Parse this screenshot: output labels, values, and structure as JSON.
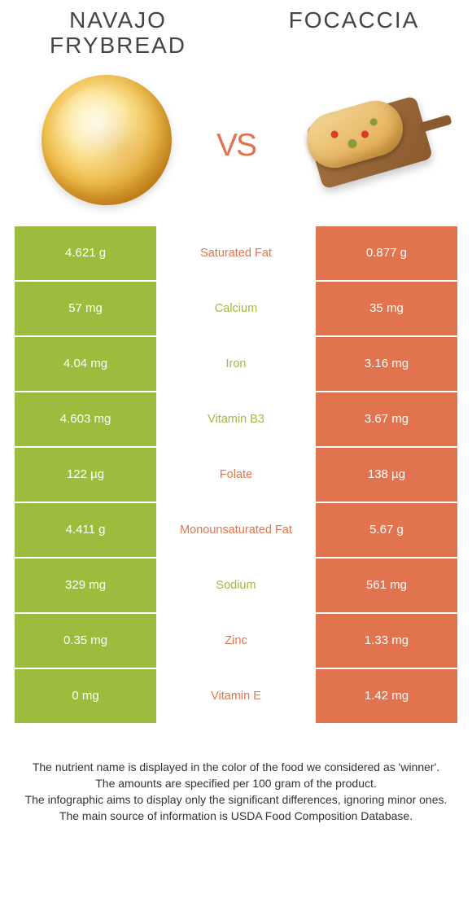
{
  "colors": {
    "left": "#9dbb3c",
    "right": "#e1744f",
    "vs": "#e1744f",
    "nutrient_winner_left": "#9dbb3c",
    "nutrient_winner_right": "#e1744f"
  },
  "header": {
    "left_title": "Navajo Frybread",
    "right_title": "Focaccia",
    "vs_label": "vs"
  },
  "rows": [
    {
      "nutrient": "Saturated Fat",
      "left": "4.621 g",
      "right": "0.877 g",
      "winner": "right"
    },
    {
      "nutrient": "Calcium",
      "left": "57 mg",
      "right": "35 mg",
      "winner": "left"
    },
    {
      "nutrient": "Iron",
      "left": "4.04 mg",
      "right": "3.16 mg",
      "winner": "left"
    },
    {
      "nutrient": "Vitamin B3",
      "left": "4.603 mg",
      "right": "3.67 mg",
      "winner": "left"
    },
    {
      "nutrient": "Folate",
      "left": "122 µg",
      "right": "138 µg",
      "winner": "right"
    },
    {
      "nutrient": "Monounsaturated Fat",
      "left": "4.411 g",
      "right": "5.67 g",
      "winner": "right"
    },
    {
      "nutrient": "Sodium",
      "left": "329 mg",
      "right": "561 mg",
      "winner": "left"
    },
    {
      "nutrient": "Zinc",
      "left": "0.35 mg",
      "right": "1.33 mg",
      "winner": "right"
    },
    {
      "nutrient": "Vitamin E",
      "left": "0 mg",
      "right": "1.42 mg",
      "winner": "right"
    }
  ],
  "notes": [
    "The nutrient name is displayed in the color of the food we considered as 'winner'.",
    "The amounts are specified per 100 gram of the product.",
    "The infographic aims to display only the significant differences, ignoring minor ones.",
    "The main source of information is USDA Food Composition Database."
  ]
}
